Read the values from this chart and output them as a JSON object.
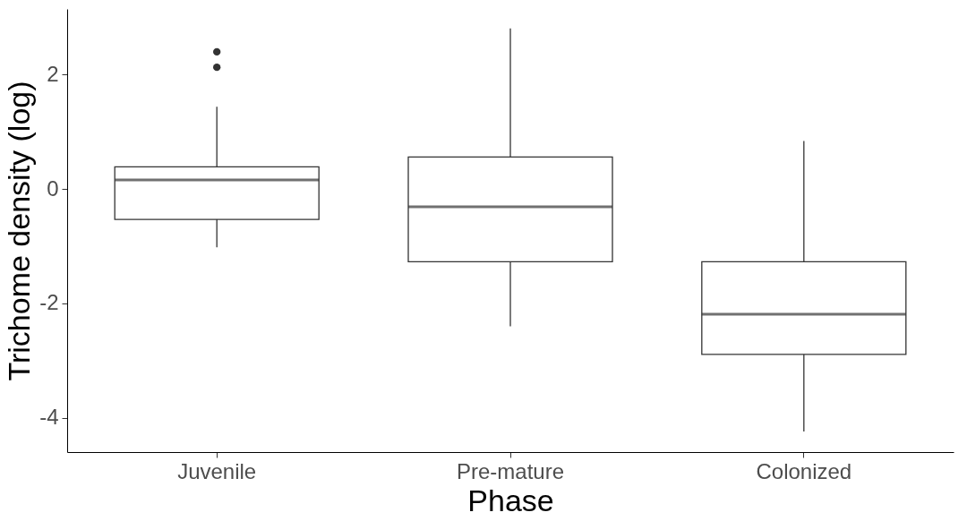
{
  "chart_data": {
    "type": "box",
    "xlabel": "Phase",
    "ylabel": "Trichome density (log)",
    "categories": [
      "Juvenile",
      "Pre-mature",
      "Colonized"
    ],
    "boxes": [
      {
        "low": -1.02,
        "q1": -0.53,
        "median": 0.16,
        "q3": 0.39,
        "high": 1.44,
        "outliers": [
          2.13,
          2.4
        ]
      },
      {
        "low": -2.4,
        "q1": -1.27,
        "median": -0.31,
        "q3": 0.56,
        "high": 2.81
      },
      {
        "low": -4.24,
        "q1": -2.89,
        "median": -2.19,
        "q3": -1.27,
        "high": 0.84
      }
    ],
    "ylim": [
      -4.6,
      3.15
    ],
    "yticks": [
      {
        "value": -4,
        "label": "-4"
      },
      {
        "value": -2,
        "label": "-2"
      },
      {
        "value": 0,
        "label": "0"
      },
      {
        "value": 2,
        "label": "2"
      }
    ],
    "grid": false
  }
}
